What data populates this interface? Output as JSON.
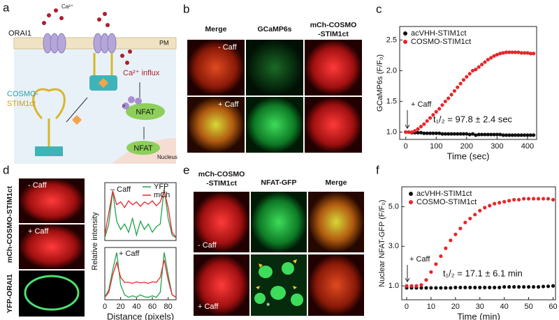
{
  "panel_labels": [
    "a",
    "b",
    "c",
    "d",
    "e",
    "f"
  ],
  "diagram": {
    "channel": "ORAI1",
    "ion": "Ca²⁺",
    "membrane": "PM",
    "sensor": [
      "COSMO-",
      "STIM1ct"
    ],
    "influx": "Ca²⁺ influx",
    "phospho": "P",
    "factor": "NFAT",
    "nucleus": "Nucleus"
  },
  "panel_b": {
    "columns": [
      [
        "Merge"
      ],
      [
        "GCaMP6s"
      ],
      [
        "mCh-COSMO",
        "-STIM1ct"
      ]
    ],
    "rows": [
      "- Caff",
      "+ Caff"
    ]
  },
  "panel_d": {
    "rows": [
      "- Caff",
      "+ Caff"
    ],
    "side_labels": [
      "mCh-COSMO-STIM1ct",
      "YFP-ORAI1"
    ],
    "ylabel": "Relative intensity"
  },
  "panel_e": {
    "columns": [
      [
        "mCh-COSMO",
        "-STIM1ct"
      ],
      [
        "NFAT-GFP"
      ],
      [
        "Merge"
      ]
    ],
    "rows": [
      "- Caff",
      "+ Caff"
    ],
    "marker": "*"
  },
  "chart_data": [
    {
      "type": "line",
      "markers": true,
      "legend": "upper left",
      "xlabel": "Time (sec)",
      "ylabel": "GCaMP6s (F/F₀)",
      "annotations": [
        "+ Caff",
        "t₁/₂ = 97.8 ± 2.4 sec"
      ],
      "xlim": [
        -20,
        430
      ],
      "xticks": [
        0,
        100,
        200,
        300,
        400
      ],
      "ylim": [
        0.88,
        2.72
      ],
      "yticks": [
        {
          "value": 1,
          "label": "1.0"
        },
        1.5,
        {
          "value": 2,
          "label": "2.0"
        },
        2.5
      ],
      "x": [
        0,
        10,
        20,
        30,
        40,
        50,
        60,
        70,
        80,
        90,
        100,
        110,
        120,
        130,
        140,
        150,
        160,
        170,
        180,
        190,
        200,
        210,
        220,
        230,
        240,
        250,
        260,
        270,
        280,
        290,
        300,
        310,
        320,
        330,
        340,
        350,
        360,
        370,
        380,
        390,
        400,
        410,
        420
      ],
      "series": [
        {
          "name": "acVHH-STIM1ct",
          "color": "#111111",
          "values": [
            1.0,
            1.0,
            0.99,
            0.99,
            0.99,
            0.99,
            0.98,
            0.98,
            0.98,
            0.98,
            0.98,
            0.98,
            0.97,
            0.97,
            0.97,
            0.97,
            0.97,
            0.97,
            0.97,
            0.97,
            0.97,
            0.96,
            0.97,
            0.95,
            0.96,
            0.96,
            0.96,
            0.96,
            0.96,
            0.96,
            0.96,
            0.96,
            0.95,
            0.95,
            0.95,
            0.95,
            0.95,
            0.95,
            0.95,
            0.95,
            0.95,
            0.95,
            0.95
          ]
        },
        {
          "name": "COSMO-STIM1ct",
          "color": "#e8262b",
          "values": [
            1.0,
            1.0,
            1.0,
            1.02,
            1.05,
            1.09,
            1.13,
            1.18,
            1.23,
            1.28,
            1.33,
            1.38,
            1.44,
            1.5,
            1.55,
            1.61,
            1.67,
            1.73,
            1.79,
            1.85,
            1.9,
            1.95,
            2.0,
            2.02,
            2.06,
            2.1,
            2.14,
            2.18,
            2.21,
            2.24,
            2.26,
            2.28,
            2.29,
            2.3,
            2.3,
            2.3,
            2.3,
            2.3,
            2.29,
            2.29,
            2.29,
            2.28,
            2.28
          ]
        }
      ]
    },
    {
      "type": "line",
      "markers": false,
      "legend": "upper right",
      "annotations": [
        "– Caff"
      ],
      "xlim": [
        0,
        90
      ],
      "ylim": [
        0,
        1.05
      ],
      "x": [
        0,
        5,
        10,
        15,
        20,
        25,
        30,
        35,
        40,
        45,
        50,
        55,
        60,
        65,
        70,
        75,
        80,
        85,
        90
      ],
      "series": [
        {
          "name": "YFP",
          "color": "#1fa34a",
          "values": [
            0.05,
            0.3,
            0.9,
            0.35,
            0.2,
            0.3,
            0.15,
            0.4,
            0.1,
            0.35,
            0.2,
            0.3,
            0.15,
            0.25,
            0.3,
            0.95,
            0.4,
            0.1,
            0.05
          ]
        },
        {
          "name": "mCh",
          "color": "#e8262b",
          "values": [
            0.1,
            0.5,
            0.9,
            0.65,
            0.7,
            0.6,
            0.72,
            0.65,
            0.7,
            0.62,
            0.7,
            0.66,
            0.72,
            0.63,
            0.7,
            0.9,
            0.6,
            0.15,
            0.05
          ]
        }
      ]
    },
    {
      "type": "line",
      "markers": false,
      "xlabel": "Distance (pixels)",
      "annotations": [
        "+ Caff"
      ],
      "xlim": [
        0,
        90
      ],
      "xticks": [
        0,
        20,
        40,
        60,
        80
      ],
      "ylim": [
        0,
        1.05
      ],
      "x": [
        0,
        5,
        10,
        15,
        20,
        25,
        30,
        35,
        40,
        45,
        50,
        55,
        60,
        65,
        70,
        75,
        80,
        85,
        90
      ],
      "series": [
        {
          "color": "#1fa34a",
          "values": [
            0.05,
            0.2,
            0.6,
            0.95,
            0.3,
            0.1,
            0.05,
            0.08,
            0.05,
            0.1,
            0.06,
            0.05,
            0.08,
            0.05,
            0.15,
            0.95,
            0.5,
            0.1,
            0.05
          ]
        },
        {
          "color": "#e8262b",
          "values": [
            0.05,
            0.15,
            0.5,
            0.75,
            0.45,
            0.35,
            0.35,
            0.33,
            0.36,
            0.34,
            0.35,
            0.33,
            0.36,
            0.35,
            0.45,
            0.8,
            0.4,
            0.1,
            0.05
          ]
        }
      ]
    },
    {
      "type": "line",
      "markers": true,
      "legend": "upper left",
      "xlabel": "Time (min)",
      "ylabel": "Nuclear NFAT-GFP (F/F₀)",
      "annotations": [
        "+ Caff",
        "t₁/₂ = 17.1 ± 6.1 min"
      ],
      "xlim": [
        -2,
        61
      ],
      "xticks": [
        0,
        10,
        20,
        30,
        40,
        50,
        60
      ],
      "ylim": [
        0.3,
        6.0
      ],
      "yticks": [
        {
          "value": 1,
          "label": "1.0"
        },
        {
          "value": 3,
          "label": "3.0"
        },
        {
          "value": 5,
          "label": "5.0"
        }
      ],
      "x": [
        0,
        2,
        4,
        6,
        8,
        10,
        12,
        14,
        16,
        18,
        20,
        22,
        24,
        26,
        28,
        30,
        32,
        34,
        36,
        38,
        40,
        42,
        44,
        46,
        48,
        50,
        52,
        54,
        56,
        58,
        60
      ],
      "series": [
        {
          "name": "acVHH-STIM1ct",
          "color": "#111111",
          "values": [
            0.9,
            0.9,
            0.9,
            0.9,
            0.9,
            0.9,
            0.9,
            0.9,
            0.9,
            0.9,
            0.92,
            0.92,
            0.92,
            0.92,
            0.92,
            0.92,
            0.92,
            0.92,
            0.92,
            0.92,
            0.95,
            0.95,
            0.95,
            0.95,
            0.95,
            0.95,
            0.95,
            0.95,
            0.97,
            0.98,
            1.0
          ]
        },
        {
          "name": "COSMO-STIM1ct",
          "color": "#e8262b",
          "values": [
            1.0,
            1.0,
            1.0,
            1.05,
            1.3,
            1.7,
            2.1,
            2.5,
            2.9,
            3.3,
            3.6,
            3.9,
            4.2,
            4.4,
            4.6,
            4.8,
            4.95,
            5.05,
            5.15,
            5.2,
            5.25,
            5.3,
            5.35,
            5.35,
            5.4,
            5.4,
            5.4,
            5.4,
            5.4,
            5.4,
            5.35
          ]
        }
      ]
    }
  ]
}
